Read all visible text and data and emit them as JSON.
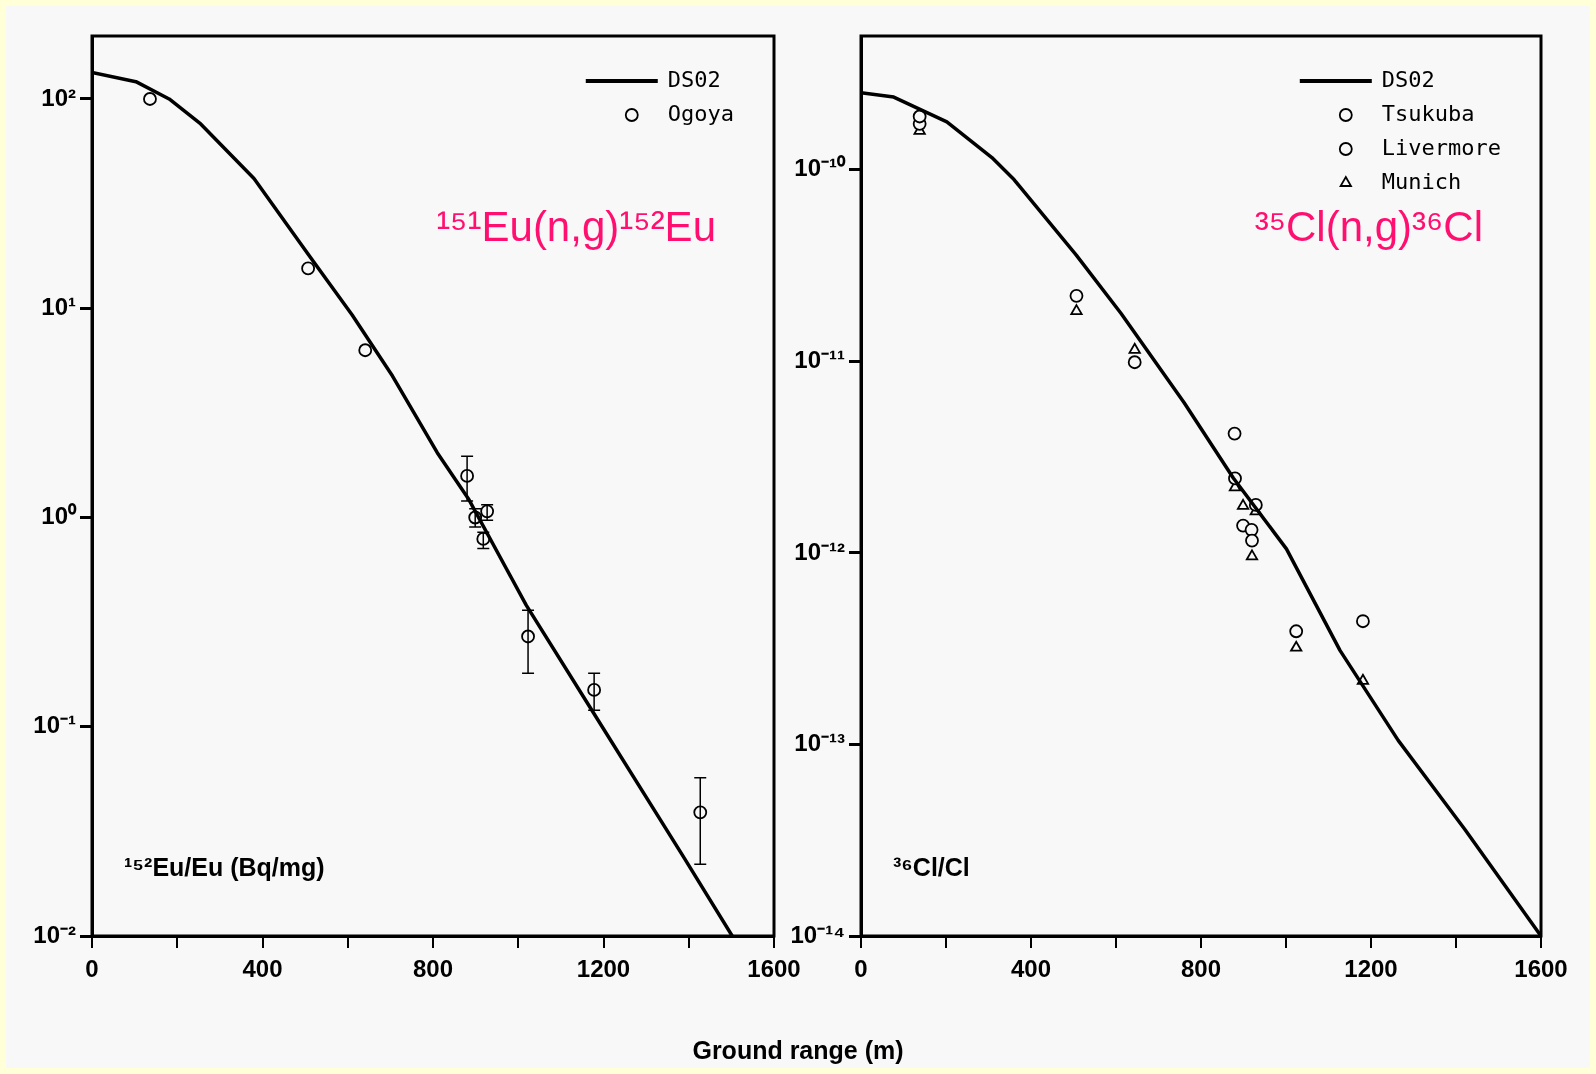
{
  "chart_data": [
    {
      "type": "scatter",
      "xlabel": "Ground range (m)",
      "ylabel": "¹⁵²Eu/Eu (Bq/mg)",
      "annotations": [
        "¹⁵¹Eu(n,g)¹⁵²Eu"
      ],
      "log": "y",
      "xlim": [
        0,
        1600
      ],
      "ylim": [
        0.01,
        200
      ],
      "xticks": [
        0,
        {
          "value": 200,
          "label": null
        },
        400,
        {
          "value": 600,
          "label": null
        },
        800,
        {
          "value": 1000,
          "label": null
        },
        1200,
        {
          "value": 1400,
          "label": null
        },
        1600
      ],
      "yticks": [
        {
          "value": 100,
          "label": "10²"
        },
        {
          "value": 10,
          "label": "10¹"
        },
        {
          "value": 1,
          "label": "10⁰"
        },
        {
          "value": 0.1,
          "label": "10⁻¹"
        },
        {
          "value": 0.01,
          "label": "10⁻²"
        }
      ],
      "legend": "top right",
      "series": [
        {
          "name": "DS02",
          "type": "line",
          "color": "#000000",
          "marker": "none",
          "x": [
            0,
            103,
            181,
            255,
            380,
            495,
            610,
            705,
            810,
            883,
            1019,
            1176,
            1387,
            1502
          ],
          "values": [
            134,
            121,
            100,
            76,
            41.7,
            19.6,
            9.3,
            4.74,
            2.04,
            1.23,
            0.38,
            0.117,
            0.024,
            0.01
          ]
        },
        {
          "name": "Ogoya",
          "color": "#000000",
          "marker": "circle",
          "x": [
            136,
            507,
            641,
            880,
            899,
            927,
            918,
            1023,
            1178,
            1427
          ],
          "values": [
            100,
            15.5,
            6.3,
            1.58,
            1.0,
            1.07,
            0.79,
            0.27,
            0.15,
            0.039
          ],
          "errors": [
            null,
            null,
            null,
            [
              1.2,
              1.96
            ],
            [
              0.9,
              1.1
            ],
            [
              0.97,
              1.15
            ],
            [
              0.71,
              0.85
            ],
            [
              0.18,
              0.36
            ],
            [
              0.12,
              0.18
            ],
            [
              0.022,
              0.057
            ]
          ]
        }
      ]
    },
    {
      "type": "scatter",
      "ylabel": "³⁶Cl/Cl",
      "annotations": [
        "³⁵Cl(n,g)³⁶Cl"
      ],
      "log": "y",
      "xlim": [
        0,
        1600
      ],
      "ylim": [
        1e-14,
        5e-10
      ],
      "xticks": [
        0,
        {
          "value": 200,
          "label": null
        },
        400,
        {
          "value": 600,
          "label": null
        },
        800,
        {
          "value": 1000,
          "label": null
        },
        1200,
        {
          "value": 1400,
          "label": null
        },
        1600
      ],
      "yticks": [
        {
          "value": 1e-10,
          "label": "10⁻¹⁰"
        },
        {
          "value": 1e-11,
          "label": "10⁻¹¹"
        },
        {
          "value": 1e-12,
          "label": "10⁻¹²"
        },
        {
          "value": 1e-13,
          "label": "10⁻¹³"
        },
        {
          "value": 1e-14,
          "label": "10⁻¹⁴"
        }
      ],
      "legend": "top right",
      "series": [
        {
          "name": "DS02",
          "type": "line",
          "color": "#000000",
          "marker": "none",
          "x": [
            0,
            77,
            202,
            308,
            360,
            507,
            612,
            760,
            876,
            1001,
            1127,
            1264,
            1421,
            1600
          ],
          "values": [
            2.53e-10,
            2.4e-10,
            1.78e-10,
            1.16e-10,
            8.9e-11,
            3.58e-11,
            1.78e-11,
            6.1e-12,
            2.46e-12,
            1.05e-12,
            3.1e-13,
            1.05e-13,
            3.6e-14,
            1e-14
          ]
        },
        {
          "name": "Tsukuba",
          "color": "#000000",
          "marker": "circle",
          "x": [
            138,
            880,
            920,
            929,
            1024
          ],
          "values": [
            1.9e-10,
            2.45e-12,
            1.16e-12,
            1.78e-12,
            3.9e-13
          ]
        },
        {
          "name": "Livermore",
          "color": "#000000",
          "marker": "circle",
          "x": [
            138,
            507,
            644,
            879,
            899,
            919,
            1181
          ],
          "values": [
            1.74e-10,
            2.2e-11,
            9.9e-12,
            4.2e-12,
            1.39e-12,
            1.32e-12,
            4.4e-13
          ]
        },
        {
          "name": "Munich",
          "color": "#000000",
          "marker": "triangle",
          "x": [
            138,
            507,
            644,
            880,
            899,
            920,
            929,
            1024,
            1181
          ],
          "values": [
            1.6e-10,
            1.83e-11,
            1.15e-11,
            2.2e-12,
            1.76e-12,
            9.6e-13,
            1.65e-12,
            3.2e-13,
            2.15e-13
          ]
        }
      ]
    }
  ]
}
